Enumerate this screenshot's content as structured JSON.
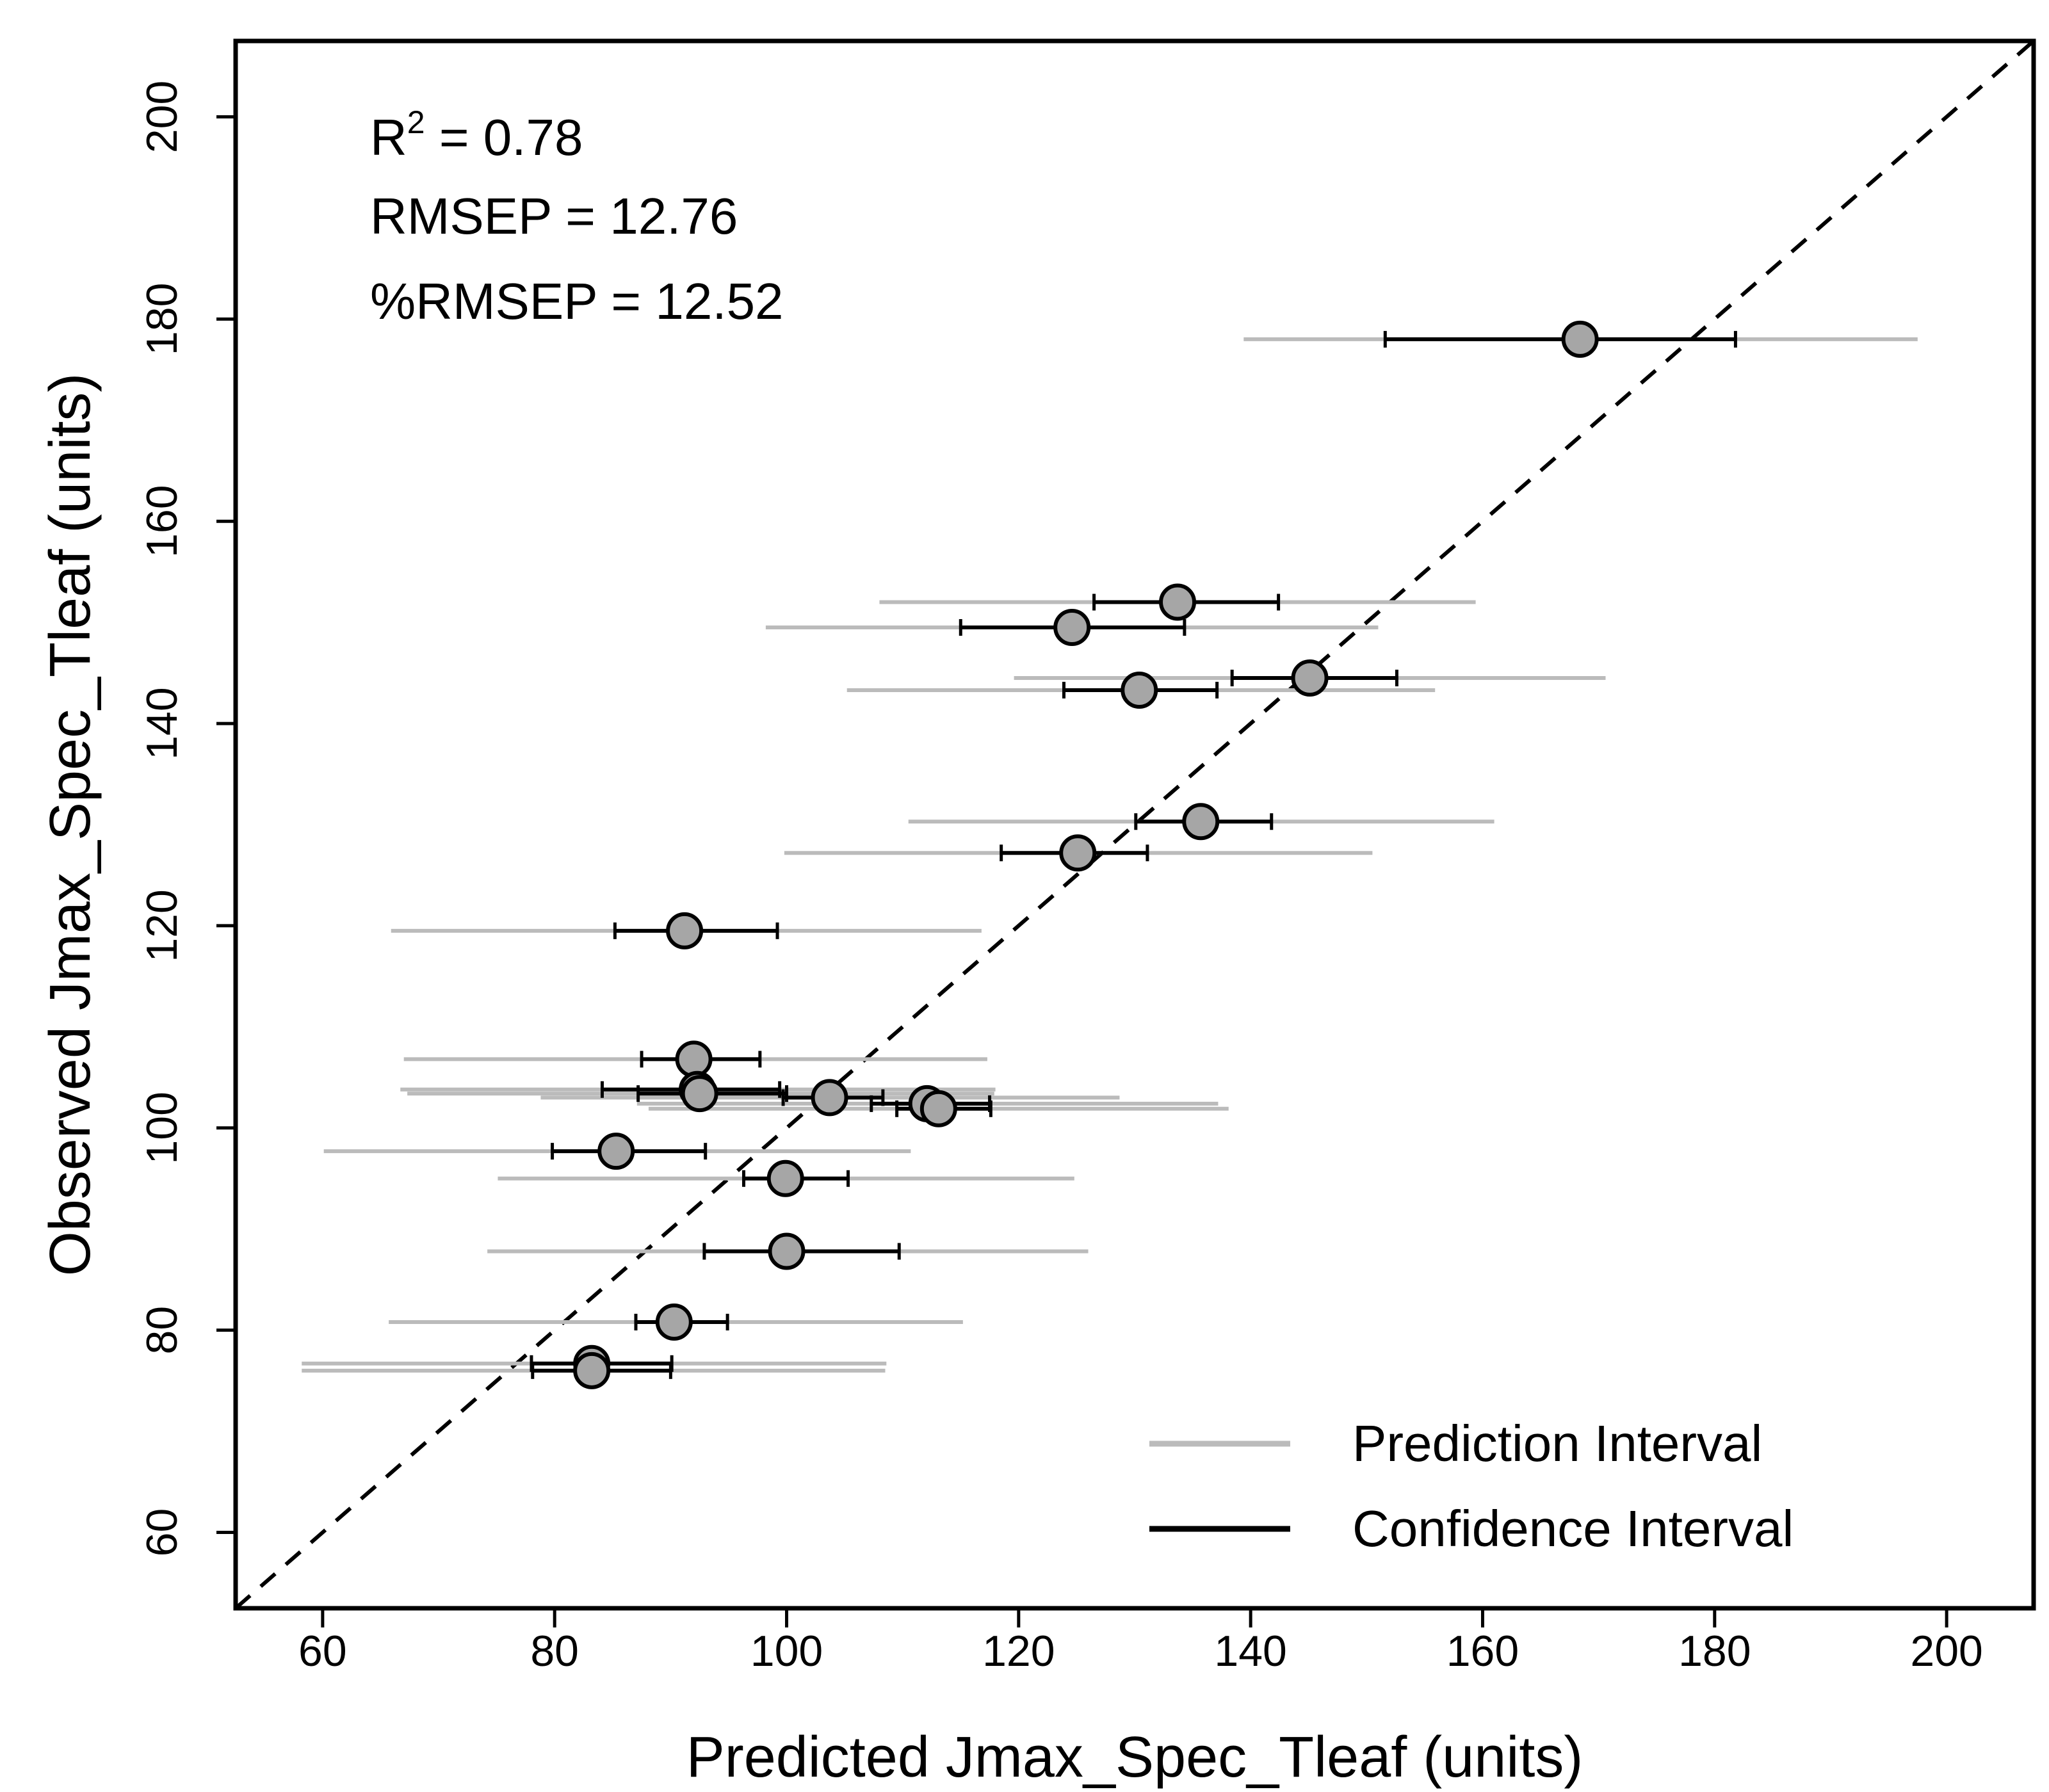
{
  "chart_data": {
    "type": "scatter",
    "title": "",
    "xlabel": "Predicted Jmax_Spec_Tleaf (units)",
    "ylabel": "Observed Jmax_Spec_Tleaf (units)",
    "xlim": [
      52.5,
      207.5
    ],
    "ylim": [
      52.5,
      207.5
    ],
    "xticks": [
      60,
      80,
      100,
      120,
      140,
      160,
      180,
      200
    ],
    "yticks": [
      60,
      80,
      100,
      120,
      140,
      160,
      180,
      200
    ],
    "grid": false,
    "reference_line": {
      "type": "1:1",
      "style": "dashed"
    },
    "annotations": {
      "r2_base": "R",
      "r2_sup": "2",
      "r2_rest": " = 0.78",
      "rmsep": "RMSEP = 12.76",
      "pct_rmsep": "%RMSEP = 12.52"
    },
    "legend": {
      "placement": "bottom-right",
      "entries": [
        {
          "label": "Prediction Interval",
          "color": "#bbbbbb"
        },
        {
          "label": "Confidence Interval",
          "color": "#000000"
        }
      ]
    },
    "colors": {
      "point_fill": "#a6a6a6",
      "point_stroke": "#000000",
      "pi": "#bbbbbb",
      "ci": "#000000"
    },
    "points": [
      {
        "x": 168.4,
        "y": 178.0,
        "ci": [
          151.6,
          181.8
        ],
        "pi": [
          139.4,
          197.5
        ]
      },
      {
        "x": 133.7,
        "y": 152.0,
        "ci": [
          126.5,
          142.4
        ],
        "pi": [
          108.0,
          159.4
        ]
      },
      {
        "x": 124.6,
        "y": 149.5,
        "ci": [
          115.0,
          134.3
        ],
        "pi": [
          98.2,
          151.0
        ]
      },
      {
        "x": 145.1,
        "y": 144.5,
        "ci": [
          138.4,
          152.6
        ],
        "pi": [
          119.6,
          170.6
        ]
      },
      {
        "x": 130.4,
        "y": 143.3,
        "ci": [
          123.9,
          137.1
        ],
        "pi": [
          105.2,
          155.9
        ]
      },
      {
        "x": 135.7,
        "y": 130.3,
        "ci": [
          130.1,
          141.8
        ],
        "pi": [
          110.5,
          161.0
        ]
      },
      {
        "x": 125.1,
        "y": 127.2,
        "ci": [
          118.5,
          131.1
        ],
        "pi": [
          99.8,
          150.5
        ]
      },
      {
        "x": 91.2,
        "y": 119.5,
        "ci": [
          85.2,
          99.2
        ],
        "pi": [
          65.9,
          116.8
        ]
      },
      {
        "x": 92.0,
        "y": 106.8,
        "ci": [
          87.5,
          97.7
        ],
        "pi": [
          67.0,
          117.3
        ]
      },
      {
        "x": 92.3,
        "y": 103.8,
        "ci": [
          84.1,
          99.4
        ],
        "pi": [
          66.7,
          118.0
        ]
      },
      {
        "x": 92.5,
        "y": 103.4,
        "ci": [
          87.2,
          100.0
        ],
        "pi": [
          67.3,
          117.9
        ]
      },
      {
        "x": 103.7,
        "y": 103.0,
        "ci": [
          99.7,
          108.3
        ],
        "pi": [
          78.8,
          128.7
        ]
      },
      {
        "x": 112.1,
        "y": 102.4,
        "ci": [
          107.3,
          117.5
        ],
        "pi": [
          87.1,
          137.2
        ]
      },
      {
        "x": 113.1,
        "y": 101.9,
        "ci": [
          109.5,
          117.6
        ],
        "pi": [
          88.1,
          138.1
        ]
      },
      {
        "x": 85.3,
        "y": 97.7,
        "ci": [
          79.8,
          93.0
        ],
        "pi": [
          60.1,
          110.7
        ]
      },
      {
        "x": 99.9,
        "y": 95.0,
        "ci": [
          96.3,
          105.3
        ],
        "pi": [
          75.1,
          124.8
        ]
      },
      {
        "x": 100.0,
        "y": 87.8,
        "ci": [
          92.9,
          109.7
        ],
        "pi": [
          74.2,
          126.0
        ]
      },
      {
        "x": 90.3,
        "y": 80.8,
        "ci": [
          87.0,
          94.9
        ],
        "pi": [
          65.7,
          115.2
        ]
      },
      {
        "x": 83.2,
        "y": 76.7,
        "ci": [
          78.0,
          90.1
        ],
        "pi": [
          58.2,
          108.6
        ]
      },
      {
        "x": 83.2,
        "y": 76.0,
        "ci": [
          78.1,
          90.0
        ],
        "pi": [
          58.2,
          108.5
        ]
      }
    ]
  }
}
